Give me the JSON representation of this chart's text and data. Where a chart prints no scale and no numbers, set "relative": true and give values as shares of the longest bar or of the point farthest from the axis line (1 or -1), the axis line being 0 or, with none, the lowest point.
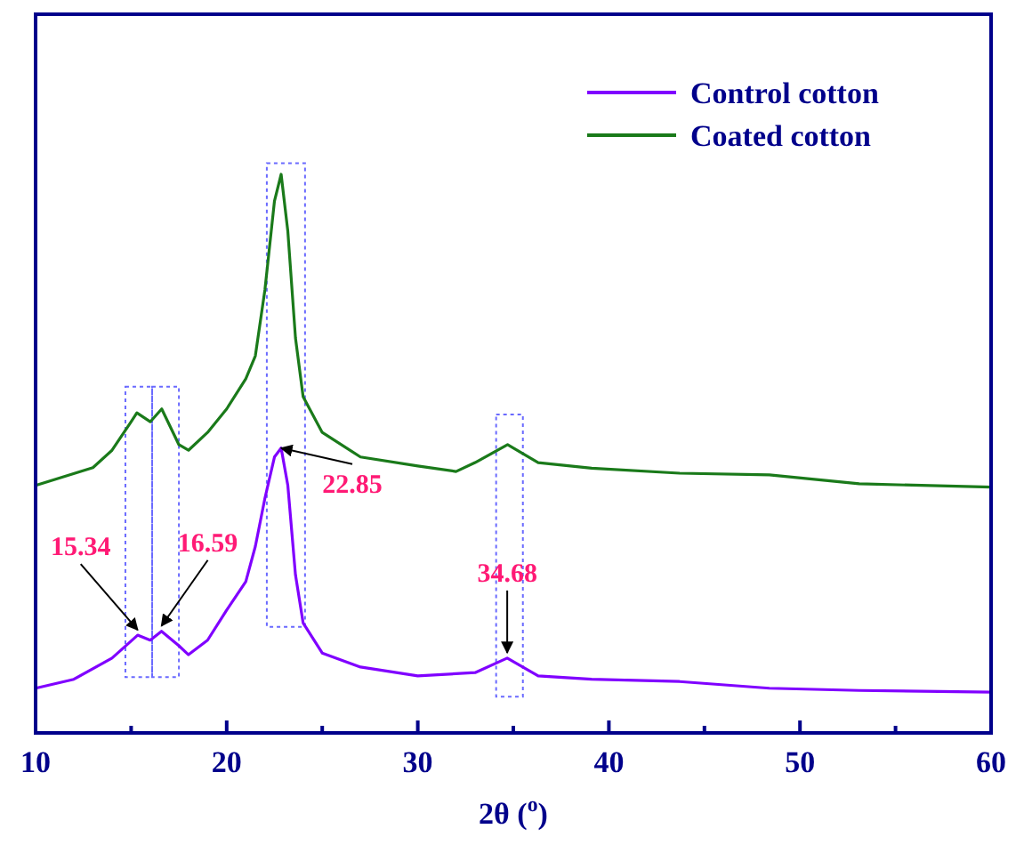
{
  "chart_data": {
    "type": "line",
    "relative": true,
    "xlabel": "2θ ($^{o}$)",
    "xlim": [
      10,
      60
    ],
    "xticks": [
      10,
      {
        "value": 15,
        "label": null
      },
      20,
      {
        "value": 25,
        "label": null
      },
      30,
      {
        "value": 35,
        "label": null
      },
      40,
      {
        "value": 45,
        "label": null
      },
      50,
      {
        "value": 55,
        "label": null
      },
      60
    ],
    "legend": "top right",
    "tick_labels": "x",
    "grid": false,
    "series": [
      {
        "name": "Control cotton",
        "color": "#8000ff",
        "x": [
          10,
          12,
          14,
          15.34,
          16,
          16.59,
          17.5,
          18,
          19,
          20,
          21,
          21.5,
          22,
          22.5,
          22.85,
          23.2,
          23.6,
          24,
          25,
          27,
          30,
          33,
          34.68,
          36.3,
          39.1,
          43.7,
          48.4,
          53.1,
          60
        ],
        "values": [
          0.08,
          0.096,
          0.134,
          0.175,
          0.166,
          0.182,
          0.156,
          0.14,
          0.166,
          0.22,
          0.271,
          0.334,
          0.42,
          0.494,
          0.51,
          0.443,
          0.283,
          0.197,
          0.143,
          0.118,
          0.102,
          0.108,
          0.134,
          0.102,
          0.096,
          0.092,
          0.08,
          0.076,
          0.073
        ]
      },
      {
        "name": "Coated cotton",
        "color": "#1a7a1a",
        "x": [
          10,
          13,
          14,
          15,
          15.3,
          16,
          16.6,
          17.5,
          18,
          19,
          20,
          21,
          21.5,
          22,
          22.5,
          22.85,
          23.2,
          23.6,
          24,
          25,
          27,
          30,
          32,
          33,
          34.7,
          36.3,
          39.1,
          43.7,
          48.4,
          53.1,
          60
        ],
        "values": [
          0.443,
          0.475,
          0.506,
          0.557,
          0.573,
          0.557,
          0.58,
          0.516,
          0.506,
          0.538,
          0.58,
          0.634,
          0.675,
          0.793,
          0.952,
          1,
          0.898,
          0.707,
          0.602,
          0.538,
          0.494,
          0.478,
          0.468,
          0.484,
          0.516,
          0.484,
          0.474,
          0.465,
          0.462,
          0.446,
          0.44
        ]
      }
    ],
    "annotations": [
      {
        "text": "15.34",
        "x": 15.34,
        "y": 0.175
      },
      {
        "text": "16.59",
        "x": 16.59,
        "y": 0.182
      },
      {
        "text": "22.85",
        "x": 22.85,
        "y": 0.51
      },
      {
        "text": "34.68",
        "x": 34.68,
        "y": 0.134
      }
    ]
  }
}
